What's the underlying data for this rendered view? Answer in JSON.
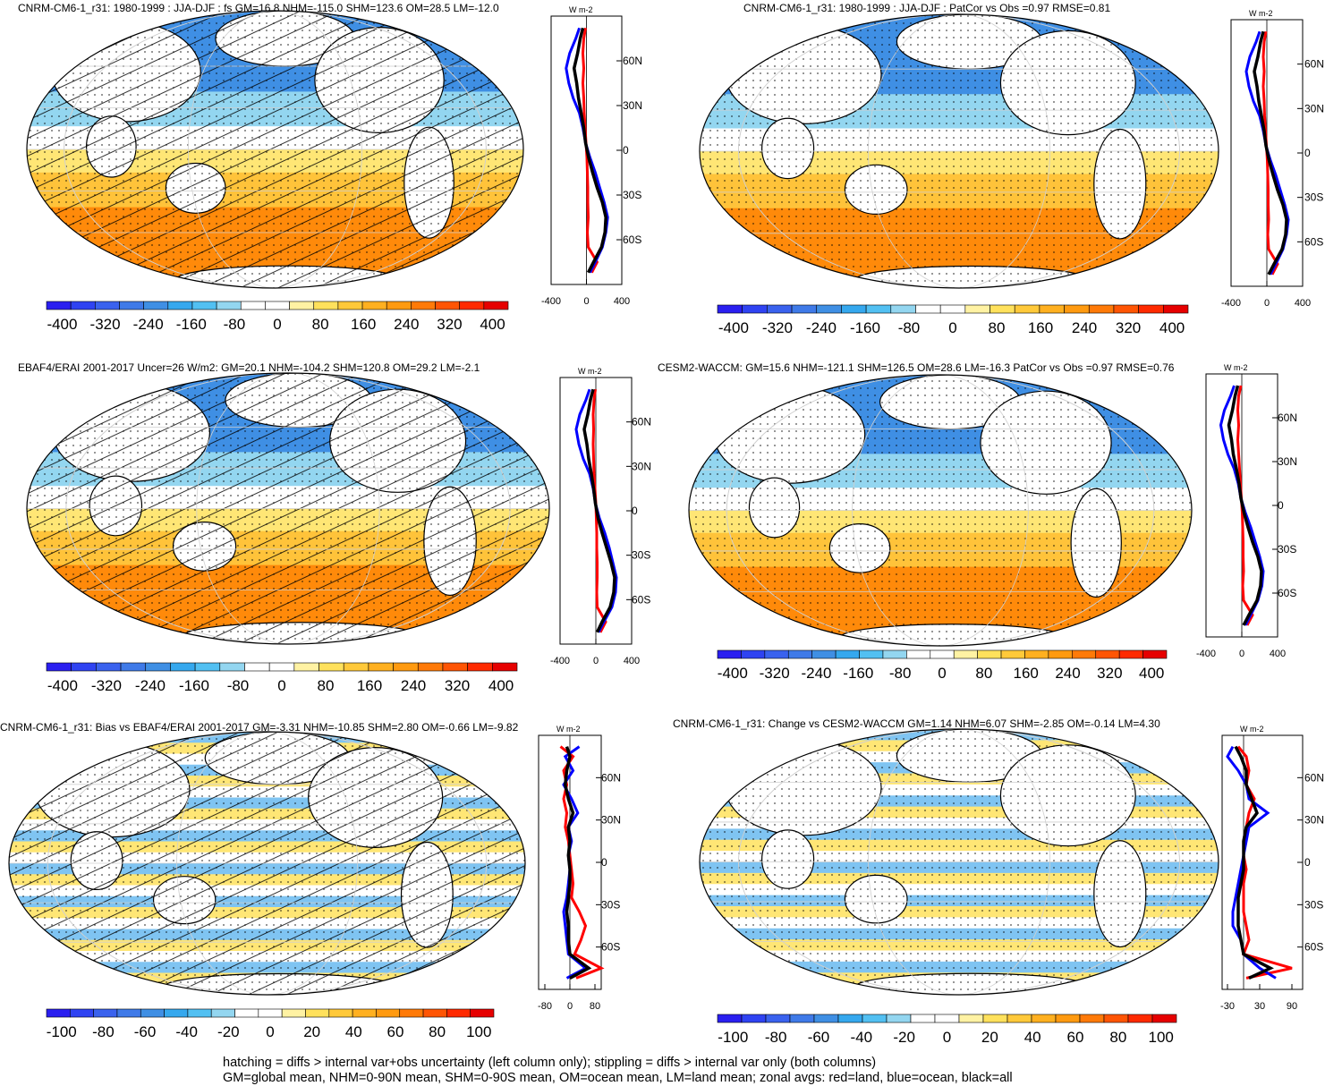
{
  "footer": {
    "line1": "hatching = diffs > internal var+obs uncertainty (left column only); stippling = diffs > internal var only (both columns)",
    "line2": "GM=global mean, NHM=0-90N mean, SHM=0-90S mean, OM=ocean mean, LM=land mean; zonal avgs: red=land, blue=ocean, black=all"
  },
  "colors": {
    "land_profile": "#ff0000",
    "ocean_profile": "#0000ff",
    "all_profile": "#000000",
    "palette": [
      "#2a1ff0",
      "#2f43f2",
      "#3a62ee",
      "#3f7ae8",
      "#3f8fe4",
      "#35a8ee",
      "#52c0f2",
      "#93d6f0",
      "#ffffff",
      "#ffffff",
      "#fff2a3",
      "#ffe15c",
      "#ffc93a",
      "#ffb020",
      "#ff9a10",
      "#ff7a08",
      "#ff5504",
      "#ff2a00",
      "#e60000"
    ]
  },
  "chart_data": [
    {
      "type": "heatmap",
      "title": "CNRM-CM6-1_r31: 1980-1999 : JJA-DJF : fs GM=16.8 NHM=-115.0 SHM=123.6 OM=28.5 LM=-12.0",
      "kind": "mean",
      "hatch": true,
      "colorbar_labels": [
        "-400",
        "-320",
        "-240",
        "-160",
        "-80",
        "0",
        "80",
        "160",
        "240",
        "320",
        "400"
      ],
      "zonal_xticks": [
        "-400",
        "0",
        "400"
      ],
      "zonal_xlim": [
        -400,
        400
      ],
      "zonal_units": "W m-2",
      "lat_labels": [
        "60N",
        "30N",
        "0",
        "30S",
        "60S"
      ],
      "zonal_series": [
        {
          "name": "land",
          "lat": [
            82,
            75,
            65,
            55,
            45,
            35,
            25,
            15,
            5,
            -5,
            -15,
            -25,
            -35,
            -45,
            -55,
            -65,
            -75,
            -82
          ],
          "values": [
            -10,
            -30,
            -40,
            -30,
            -40,
            -30,
            -25,
            -15,
            -5,
            5,
            10,
            15,
            15,
            20,
            10,
            20,
            120,
            60
          ]
        },
        {
          "name": "ocean",
          "lat": [
            82,
            75,
            65,
            55,
            45,
            35,
            25,
            15,
            5,
            -5,
            -15,
            -25,
            -35,
            -45,
            -55,
            -65,
            -75,
            -82
          ],
          "values": [
            -80,
            -120,
            -190,
            -230,
            -200,
            -150,
            -80,
            -40,
            -10,
            40,
            100,
            150,
            200,
            240,
            220,
            180,
            100,
            40
          ]
        },
        {
          "name": "all",
          "lat": [
            82,
            75,
            65,
            55,
            45,
            35,
            25,
            15,
            5,
            -5,
            -15,
            -25,
            -35,
            -45,
            -55,
            -65,
            -75,
            -82
          ],
          "values": [
            -40,
            -70,
            -100,
            -140,
            -110,
            -90,
            -60,
            -30,
            -10,
            25,
            70,
            120,
            180,
            220,
            210,
            170,
            80,
            20
          ]
        }
      ]
    },
    {
      "type": "heatmap",
      "title": "CNRM-CM6-1_r31: 1980-1999 : JJA-DJF : PatCor vs Obs =0.97 RMSE=0.81",
      "kind": "mean",
      "hatch": false,
      "colorbar_labels": [
        "-400",
        "-320",
        "-240",
        "-160",
        "-80",
        "0",
        "80",
        "160",
        "240",
        "320",
        "400"
      ],
      "zonal_xticks": [
        "-400",
        "0",
        "400"
      ],
      "zonal_xlim": [
        -400,
        400
      ],
      "zonal_units": "W m-2",
      "lat_labels": [
        "60N",
        "30N",
        "0",
        "30S",
        "60S"
      ],
      "zonal_series": [
        {
          "name": "land",
          "lat": [
            82,
            75,
            65,
            55,
            45,
            35,
            25,
            15,
            5,
            -5,
            -15,
            -25,
            -35,
            -45,
            -55,
            -65,
            -75,
            -82
          ],
          "values": [
            -10,
            -30,
            -40,
            -30,
            -40,
            -30,
            -25,
            -15,
            -5,
            5,
            10,
            15,
            15,
            20,
            10,
            20,
            120,
            60
          ]
        },
        {
          "name": "ocean",
          "lat": [
            82,
            75,
            65,
            55,
            45,
            35,
            25,
            15,
            5,
            -5,
            -15,
            -25,
            -35,
            -45,
            -55,
            -65,
            -75,
            -82
          ],
          "values": [
            -80,
            -120,
            -190,
            -230,
            -200,
            -150,
            -80,
            -40,
            -10,
            40,
            100,
            150,
            200,
            240,
            220,
            180,
            100,
            40
          ]
        },
        {
          "name": "all",
          "lat": [
            82,
            75,
            65,
            55,
            45,
            35,
            25,
            15,
            5,
            -5,
            -15,
            -25,
            -35,
            -45,
            -55,
            -65,
            -75,
            -82
          ],
          "values": [
            -40,
            -70,
            -100,
            -140,
            -110,
            -90,
            -60,
            -30,
            -10,
            25,
            70,
            120,
            180,
            220,
            210,
            170,
            80,
            20
          ]
        }
      ]
    },
    {
      "type": "heatmap",
      "title": "EBAF4/ERAI 2001-2017 Uncer=26 W/m2: GM=20.1 NHM=-104.2 SHM=120.8 OM=29.2 LM=-2.1",
      "kind": "mean",
      "hatch": true,
      "colorbar_labels": [
        "-400",
        "-320",
        "-240",
        "-160",
        "-80",
        "0",
        "80",
        "160",
        "240",
        "320",
        "400"
      ],
      "zonal_xticks": [
        "-400",
        "0",
        "400"
      ],
      "zonal_xlim": [
        -400,
        400
      ],
      "zonal_units": "W m-2",
      "lat_labels": [
        "60N",
        "30N",
        "0",
        "30S",
        "60S"
      ],
      "zonal_series": [
        {
          "name": "land",
          "lat": [
            82,
            75,
            65,
            55,
            45,
            35,
            25,
            15,
            5,
            -5,
            -15,
            -25,
            -35,
            -45,
            -55,
            -65,
            -75,
            -82
          ],
          "values": [
            -5,
            -20,
            -30,
            -25,
            -30,
            -25,
            -20,
            -10,
            0,
            5,
            10,
            10,
            15,
            15,
            10,
            15,
            110,
            50
          ]
        },
        {
          "name": "ocean",
          "lat": [
            82,
            75,
            65,
            55,
            45,
            35,
            25,
            15,
            5,
            -5,
            -15,
            -25,
            -35,
            -45,
            -55,
            -65,
            -75,
            -82
          ],
          "values": [
            -70,
            -110,
            -180,
            -220,
            -190,
            -140,
            -70,
            -30,
            -5,
            40,
            100,
            150,
            190,
            230,
            220,
            180,
            90,
            30
          ]
        },
        {
          "name": "all",
          "lat": [
            82,
            75,
            65,
            55,
            45,
            35,
            25,
            15,
            5,
            -5,
            -15,
            -25,
            -35,
            -45,
            -55,
            -65,
            -75,
            -82
          ],
          "values": [
            -30,
            -60,
            -90,
            -130,
            -100,
            -80,
            -50,
            -25,
            -5,
            25,
            70,
            120,
            170,
            210,
            200,
            160,
            70,
            15
          ]
        }
      ]
    },
    {
      "type": "heatmap",
      "title": "CESM2-WACCM: GM=15.6 NHM=-121.1 SHM=126.5 OM=28.6 LM=-16.3 PatCor vs Obs =0.97 RMSE=0.76",
      "kind": "mean",
      "hatch": false,
      "colorbar_labels": [
        "-400",
        "-320",
        "-240",
        "-160",
        "-80",
        "0",
        "80",
        "160",
        "240",
        "320",
        "400"
      ],
      "zonal_xticks": [
        "-400",
        "0",
        "400"
      ],
      "zonal_xlim": [
        -400,
        400
      ],
      "zonal_units": "W m-2",
      "lat_labels": [
        "60N",
        "30N",
        "0",
        "30S",
        "60S"
      ],
      "zonal_series": [
        {
          "name": "land",
          "lat": [
            82,
            75,
            65,
            55,
            45,
            35,
            25,
            15,
            5,
            -5,
            -15,
            -25,
            -35,
            -45,
            -55,
            -65,
            -75,
            -82
          ],
          "values": [
            -10,
            -35,
            -45,
            -35,
            -45,
            -35,
            -25,
            -15,
            -5,
            5,
            10,
            15,
            15,
            20,
            10,
            20,
            120,
            60
          ]
        },
        {
          "name": "ocean",
          "lat": [
            82,
            75,
            65,
            55,
            45,
            35,
            25,
            15,
            5,
            -5,
            -15,
            -25,
            -35,
            -45,
            -55,
            -65,
            -75,
            -82
          ],
          "values": [
            -85,
            -125,
            -195,
            -235,
            -205,
            -155,
            -85,
            -40,
            -10,
            40,
            100,
            150,
            200,
            240,
            225,
            180,
            100,
            40
          ]
        },
        {
          "name": "all",
          "lat": [
            82,
            75,
            65,
            55,
            45,
            35,
            25,
            15,
            5,
            -5,
            -15,
            -25,
            -35,
            -45,
            -55,
            -65,
            -75,
            -82
          ],
          "values": [
            -45,
            -75,
            -105,
            -145,
            -115,
            -95,
            -60,
            -30,
            -10,
            25,
            70,
            120,
            180,
            220,
            210,
            170,
            80,
            20
          ]
        }
      ]
    },
    {
      "type": "heatmap",
      "title": "CNRM-CM6-1_r31: Bias vs EBAF4/ERAI 2001-2017 GM=-3.31 NHM=-10.85 SHM=2.80 OM=-0.66 LM=-9.82",
      "kind": "bias",
      "hatch": true,
      "colorbar_labels": [
        "-100",
        "-80",
        "-60",
        "-40",
        "-20",
        "0",
        "20",
        "40",
        "60",
        "80",
        "100"
      ],
      "zonal_xticks": [
        "-80",
        "0",
        "80"
      ],
      "zonal_xlim": [
        -100,
        100
      ],
      "zonal_units": "W m-2",
      "lat_labels": [
        "60N",
        "30N",
        "0",
        "30S",
        "60S"
      ],
      "zonal_series": [
        {
          "name": "land",
          "lat": [
            82,
            75,
            65,
            55,
            45,
            35,
            25,
            15,
            5,
            -5,
            -15,
            -25,
            -35,
            -45,
            -55,
            -65,
            -75,
            -82
          ],
          "values": [
            -30,
            10,
            -20,
            -10,
            -20,
            -10,
            -15,
            -5,
            0,
            5,
            10,
            5,
            30,
            50,
            35,
            15,
            100,
            20
          ]
        },
        {
          "name": "ocean",
          "lat": [
            82,
            75,
            65,
            55,
            45,
            35,
            25,
            15,
            5,
            -5,
            -15,
            -25,
            -35,
            -45,
            -55,
            -65,
            -75,
            -82
          ],
          "values": [
            30,
            -15,
            10,
            -20,
            5,
            25,
            -5,
            5,
            -5,
            0,
            -5,
            -10,
            -20,
            -15,
            -10,
            -5,
            50,
            -10
          ]
        },
        {
          "name": "all",
          "lat": [
            82,
            75,
            65,
            55,
            45,
            35,
            25,
            15,
            5,
            -5,
            -15,
            -25,
            -35,
            -45,
            -55,
            -65,
            -75,
            -82
          ],
          "values": [
            -10,
            0,
            -10,
            -15,
            -5,
            10,
            -5,
            0,
            -5,
            0,
            0,
            -5,
            -10,
            -5,
            -5,
            0,
            60,
            0
          ]
        }
      ]
    },
    {
      "type": "heatmap",
      "title": "CNRM-CM6-1_r31: Change vs CESM2-WACCM GM=1.14 NHM=6.07 SHM=-2.85 OM=-0.14 LM=4.30",
      "kind": "bias",
      "hatch": false,
      "colorbar_labels": [
        "-100",
        "-80",
        "-60",
        "-40",
        "-20",
        "0",
        "20",
        "40",
        "60",
        "80",
        "100"
      ],
      "zonal_xticks": [
        "-30",
        "30",
        "90"
      ],
      "zonal_xlim": [
        -40,
        110
      ],
      "zonal_units": "W m-2",
      "lat_labels": [
        "60N",
        "30N",
        "0",
        "30S",
        "60S"
      ],
      "zonal_series": [
        {
          "name": "land",
          "lat": [
            82,
            75,
            65,
            55,
            45,
            35,
            25,
            15,
            5,
            -5,
            -15,
            -25,
            -35,
            -45,
            -55,
            -65,
            -75,
            -82
          ],
          "values": [
            -10,
            5,
            10,
            5,
            20,
            10,
            5,
            0,
            0,
            5,
            0,
            0,
            0,
            5,
            10,
            0,
            90,
            5
          ]
        },
        {
          "name": "ocean",
          "lat": [
            82,
            75,
            65,
            55,
            45,
            35,
            25,
            15,
            5,
            -5,
            -15,
            -25,
            -35,
            -45,
            -55,
            -65,
            -75,
            -82
          ],
          "values": [
            -20,
            -30,
            -10,
            5,
            10,
            45,
            10,
            5,
            0,
            -5,
            -10,
            -15,
            -20,
            -20,
            -5,
            0,
            30,
            60
          ]
        },
        {
          "name": "all",
          "lat": [
            82,
            75,
            65,
            55,
            45,
            35,
            25,
            15,
            5,
            -5,
            -15,
            -25,
            -35,
            -45,
            -55,
            -65,
            -75,
            -82
          ],
          "values": [
            -15,
            -5,
            5,
            5,
            15,
            25,
            5,
            0,
            0,
            0,
            -5,
            -10,
            -10,
            -10,
            -5,
            0,
            50,
            10
          ]
        }
      ]
    }
  ]
}
